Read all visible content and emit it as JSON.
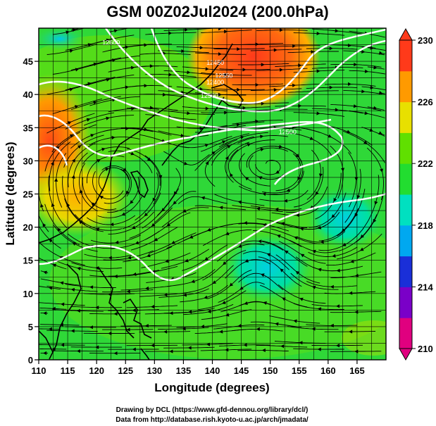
{
  "title": "GSM 00Z02Jul2024 (200.0hPa)",
  "map": {
    "x_axis": {
      "label": "Longitude (degrees)",
      "range": [
        110,
        170
      ],
      "ticks": [
        110,
        115,
        120,
        125,
        130,
        135,
        140,
        145,
        150,
        155,
        160,
        165
      ]
    },
    "y_axis": {
      "label": "Latitude  (degrees)",
      "range": [
        0,
        50
      ],
      "ticks": [
        0,
        5,
        10,
        15,
        20,
        25,
        30,
        35,
        40,
        45
      ]
    },
    "grid": true,
    "colorbar": {
      "min": 210,
      "max": 230,
      "ticks": [
        "230",
        "226",
        "222",
        "218",
        "214",
        "210"
      ],
      "colors": [
        "#e0007f",
        "#7a00c8",
        "#1a2fd8",
        "#00a8f0",
        "#00e0c0",
        "#22dd30",
        "#60e000",
        "#e8e000",
        "#ff9a00",
        "#ff3a1a"
      ]
    },
    "contour_labels": [
      {
        "text": "12450",
        "lon": 140.5,
        "lat": 44.5
      },
      {
        "text": "12400",
        "lon": 140.5,
        "lat": 41.5
      },
      {
        "text": "12500",
        "lon": 139.5,
        "lat": 39.5
      },
      {
        "text": "12500",
        "lon": 153.0,
        "lat": 34.0
      },
      {
        "text": "12550",
        "lon": 142.0,
        "lat": 42.5
      },
      {
        "text": "12600",
        "lon": 122.5,
        "lat": 47.5
      }
    ]
  },
  "credits": {
    "line1": "Drawing by DCL (https://www.gfd-dennou.org/library/dcl/)",
    "line2": "Data from http://database.rish.kyoto-u.ac.jp/arch/jmadata/"
  }
}
